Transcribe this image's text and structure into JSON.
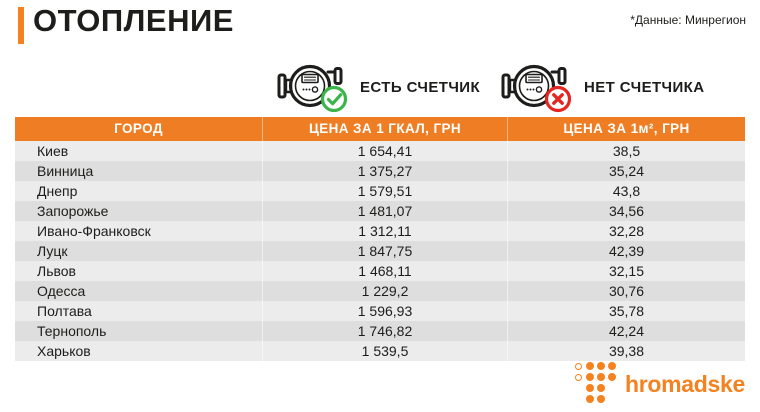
{
  "colors": {
    "accent_orange": "#f58220",
    "table_header_orange": "#ef7d23",
    "stripe_light": "#ececec",
    "stripe_dark": "#dedede",
    "text_dark": "#1d1d1b",
    "check_green": "#3ab54a",
    "cross_red": "#e52620"
  },
  "header": {
    "title": "ОТОПЛЕНИЕ",
    "source_note": "*Данные: Минрегион"
  },
  "legend": {
    "has_meter_label": "ЕСТЬ СЧЕТЧИК",
    "no_meter_label": "НЕТ СЧЕТЧИКА",
    "has_meter_icon": "meter-with-green-check-icon",
    "no_meter_icon": "meter-with-red-cross-icon"
  },
  "footer": {
    "logo_text": "hromadske",
    "logo_icon": "hromadske-dots-icon"
  },
  "chart_data": {
    "type": "table",
    "title": "ОТОПЛЕНИЕ",
    "source": "*Данные: Минрегион",
    "legend": [
      "ЕСТЬ СЧЕТЧИК",
      "НЕТ СЧЕТЧИКА"
    ],
    "columns": [
      "ГОРОД",
      "ЦЕНА ЗА 1 ГКАЛ, ГРН",
      "ЦЕНА ЗА 1м², ГРН"
    ],
    "rows": [
      [
        "Киев",
        "1 654,41",
        "38,5"
      ],
      [
        "Винница",
        "1 375,27",
        "35,24"
      ],
      [
        "Днепр",
        "1 579,51",
        "43,8"
      ],
      [
        "Запорожье",
        "1 481,07",
        "34,56"
      ],
      [
        "Ивано-Франковск",
        "1 312,11",
        "32,28"
      ],
      [
        "Луцк",
        "1 847,75",
        "42,39"
      ],
      [
        "Львов",
        "1 468,11",
        "32,15"
      ],
      [
        "Одесса",
        "1 229,2",
        "30,76"
      ],
      [
        "Полтава",
        "1 596,93",
        "35,78"
      ],
      [
        "Тернополь",
        "1 746,82",
        "42,24"
      ],
      [
        "Харьков",
        "1 539,5",
        "39,38"
      ]
    ]
  }
}
